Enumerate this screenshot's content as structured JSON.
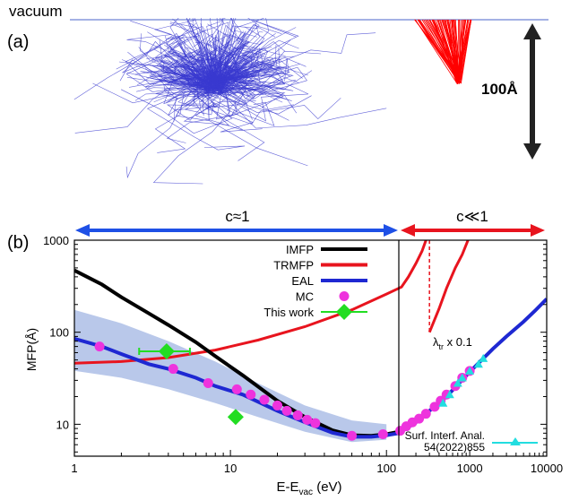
{
  "panel_a": {
    "label": "(a)",
    "surface_label": "vacuum",
    "scale_label": "100Å",
    "colors": {
      "low_energy": "#3a3ad0",
      "high_energy": "#ff0000",
      "arrow": "#222222"
    }
  },
  "panel_b": {
    "label": "(b)",
    "regime_low": "c≈1",
    "regime_high": "c≪1",
    "colors": {
      "regime_low": "#1e50e6",
      "regime_high": "#e8141e",
      "band": "#b9c8ea"
    }
  },
  "chart_data": {
    "type": "line",
    "xlabel": "E-E",
    "xlabel_sub": "vac",
    "xlabel_unit": " (eV)",
    "ylabel": "MFP(Å)",
    "xscale": "log",
    "yscale": "log",
    "xlim": [
      1,
      10000
    ],
    "ylim": [
      4.5,
      1000
    ],
    "break_x": 120,
    "x_ticks": [
      "1",
      "10",
      "100",
      "1000",
      "10000"
    ],
    "y_ticks": [
      "10",
      "100",
      "1000"
    ],
    "annotation": "λ",
    "annotation_sub": "tr",
    "annotation_tail": " x 0.1",
    "legend_placement": "top-center",
    "series": [
      {
        "name": "IMFP",
        "color": "#000000",
        "points": [
          [
            1,
            470
          ],
          [
            1.5,
            330
          ],
          [
            2,
            240
          ],
          [
            3,
            160
          ],
          [
            4,
            120
          ],
          [
            6,
            78
          ],
          [
            8,
            55
          ],
          [
            12,
            34
          ],
          [
            20,
            18
          ],
          [
            30,
            12
          ],
          [
            45,
            8.6
          ],
          [
            60,
            7.6
          ],
          [
            80,
            7.5
          ],
          [
            100,
            7.8
          ],
          [
            120,
            8.3
          ]
        ]
      },
      {
        "name": "TRMFP",
        "color": "#e8141e",
        "points": [
          [
            1,
            46
          ],
          [
            2,
            48
          ],
          [
            4,
            53
          ],
          [
            8,
            64
          ],
          [
            15,
            82
          ],
          [
            30,
            115
          ],
          [
            60,
            175
          ],
          [
            100,
            260
          ],
          [
            130,
            310
          ],
          [
            160,
            400
          ],
          [
            200,
            560
          ],
          [
            240,
            760
          ],
          [
            270,
            1000
          ]
        ]
      },
      {
        "name": "EAL",
        "color": "#1e28d2",
        "points": [
          [
            1,
            85
          ],
          [
            1.5,
            70
          ],
          [
            2,
            58
          ],
          [
            3,
            45
          ],
          [
            4,
            40
          ],
          [
            6,
            32
          ],
          [
            8,
            26
          ],
          [
            12,
            21
          ],
          [
            20,
            14
          ],
          [
            30,
            10.5
          ],
          [
            45,
            8.1
          ],
          [
            60,
            7.3
          ],
          [
            80,
            7.3
          ],
          [
            100,
            7.6
          ],
          [
            120,
            8
          ],
          [
            150,
            9
          ],
          [
            200,
            10.5
          ],
          [
            300,
            14
          ],
          [
            500,
            20
          ],
          [
            700,
            27
          ],
          [
            1000,
            37
          ],
          [
            1500,
            52
          ],
          [
            2000,
            66
          ],
          [
            3000,
            90
          ],
          [
            5000,
            130
          ],
          [
            7000,
            170
          ],
          [
            10000,
            230
          ]
        ]
      },
      {
        "name": "MC",
        "color": "#ee33dd",
        "points": [
          [
            1.45,
            70
          ],
          [
            4.3,
            40
          ],
          [
            7.2,
            28
          ],
          [
            11,
            24
          ],
          [
            13.5,
            21
          ],
          [
            16.5,
            18.5
          ],
          [
            20,
            16
          ],
          [
            23,
            14
          ],
          [
            27,
            12.5
          ],
          [
            31,
            11.2
          ],
          [
            35,
            10.3
          ],
          [
            60,
            7.5
          ],
          [
            95,
            7.8
          ],
          [
            125,
            8.5
          ],
          [
            150,
            9.5
          ],
          [
            180,
            10.5
          ],
          [
            220,
            11.5
          ],
          [
            270,
            13
          ],
          [
            350,
            15.5
          ],
          [
            420,
            18
          ],
          [
            500,
            21
          ],
          [
            650,
            26
          ],
          [
            800,
            32
          ],
          [
            1000,
            38
          ]
        ]
      },
      {
        "name": "This work",
        "color": "#22dd22",
        "points": [
          [
            3.9,
            62,
            2.6,
            5.5
          ],
          [
            10.8,
            12,
            10.8,
            10.8
          ]
        ]
      },
      {
        "name": "Surf. Interf. Anal.\n54(2022)855",
        "color": "#22dde0",
        "points": [
          [
            450,
            17
          ],
          [
            550,
            21
          ],
          [
            700,
            28
          ],
          [
            800,
            32
          ],
          [
            1000,
            38
          ],
          [
            1300,
            45
          ],
          [
            1500,
            52
          ]
        ]
      }
    ],
    "band": {
      "upper": [
        [
          1,
          175
        ],
        [
          2,
          125
        ],
        [
          4,
          80
        ],
        [
          8,
          48
        ],
        [
          15,
          28
        ],
        [
          30,
          16
        ],
        [
          60,
          11
        ],
        [
          100,
          10
        ]
      ],
      "lower": [
        [
          1,
          38
        ],
        [
          2,
          32
        ],
        [
          4,
          24
        ],
        [
          8,
          17
        ],
        [
          15,
          12
        ],
        [
          30,
          8.3
        ],
        [
          60,
          6.4
        ],
        [
          100,
          6.8
        ]
      ]
    },
    "trmfp_high": [
      [
        300,
        100
      ],
      [
        400,
        180
      ],
      [
        500,
        300
      ],
      [
        650,
        500
      ],
      [
        800,
        700
      ],
      [
        950,
        1000
      ]
    ]
  }
}
